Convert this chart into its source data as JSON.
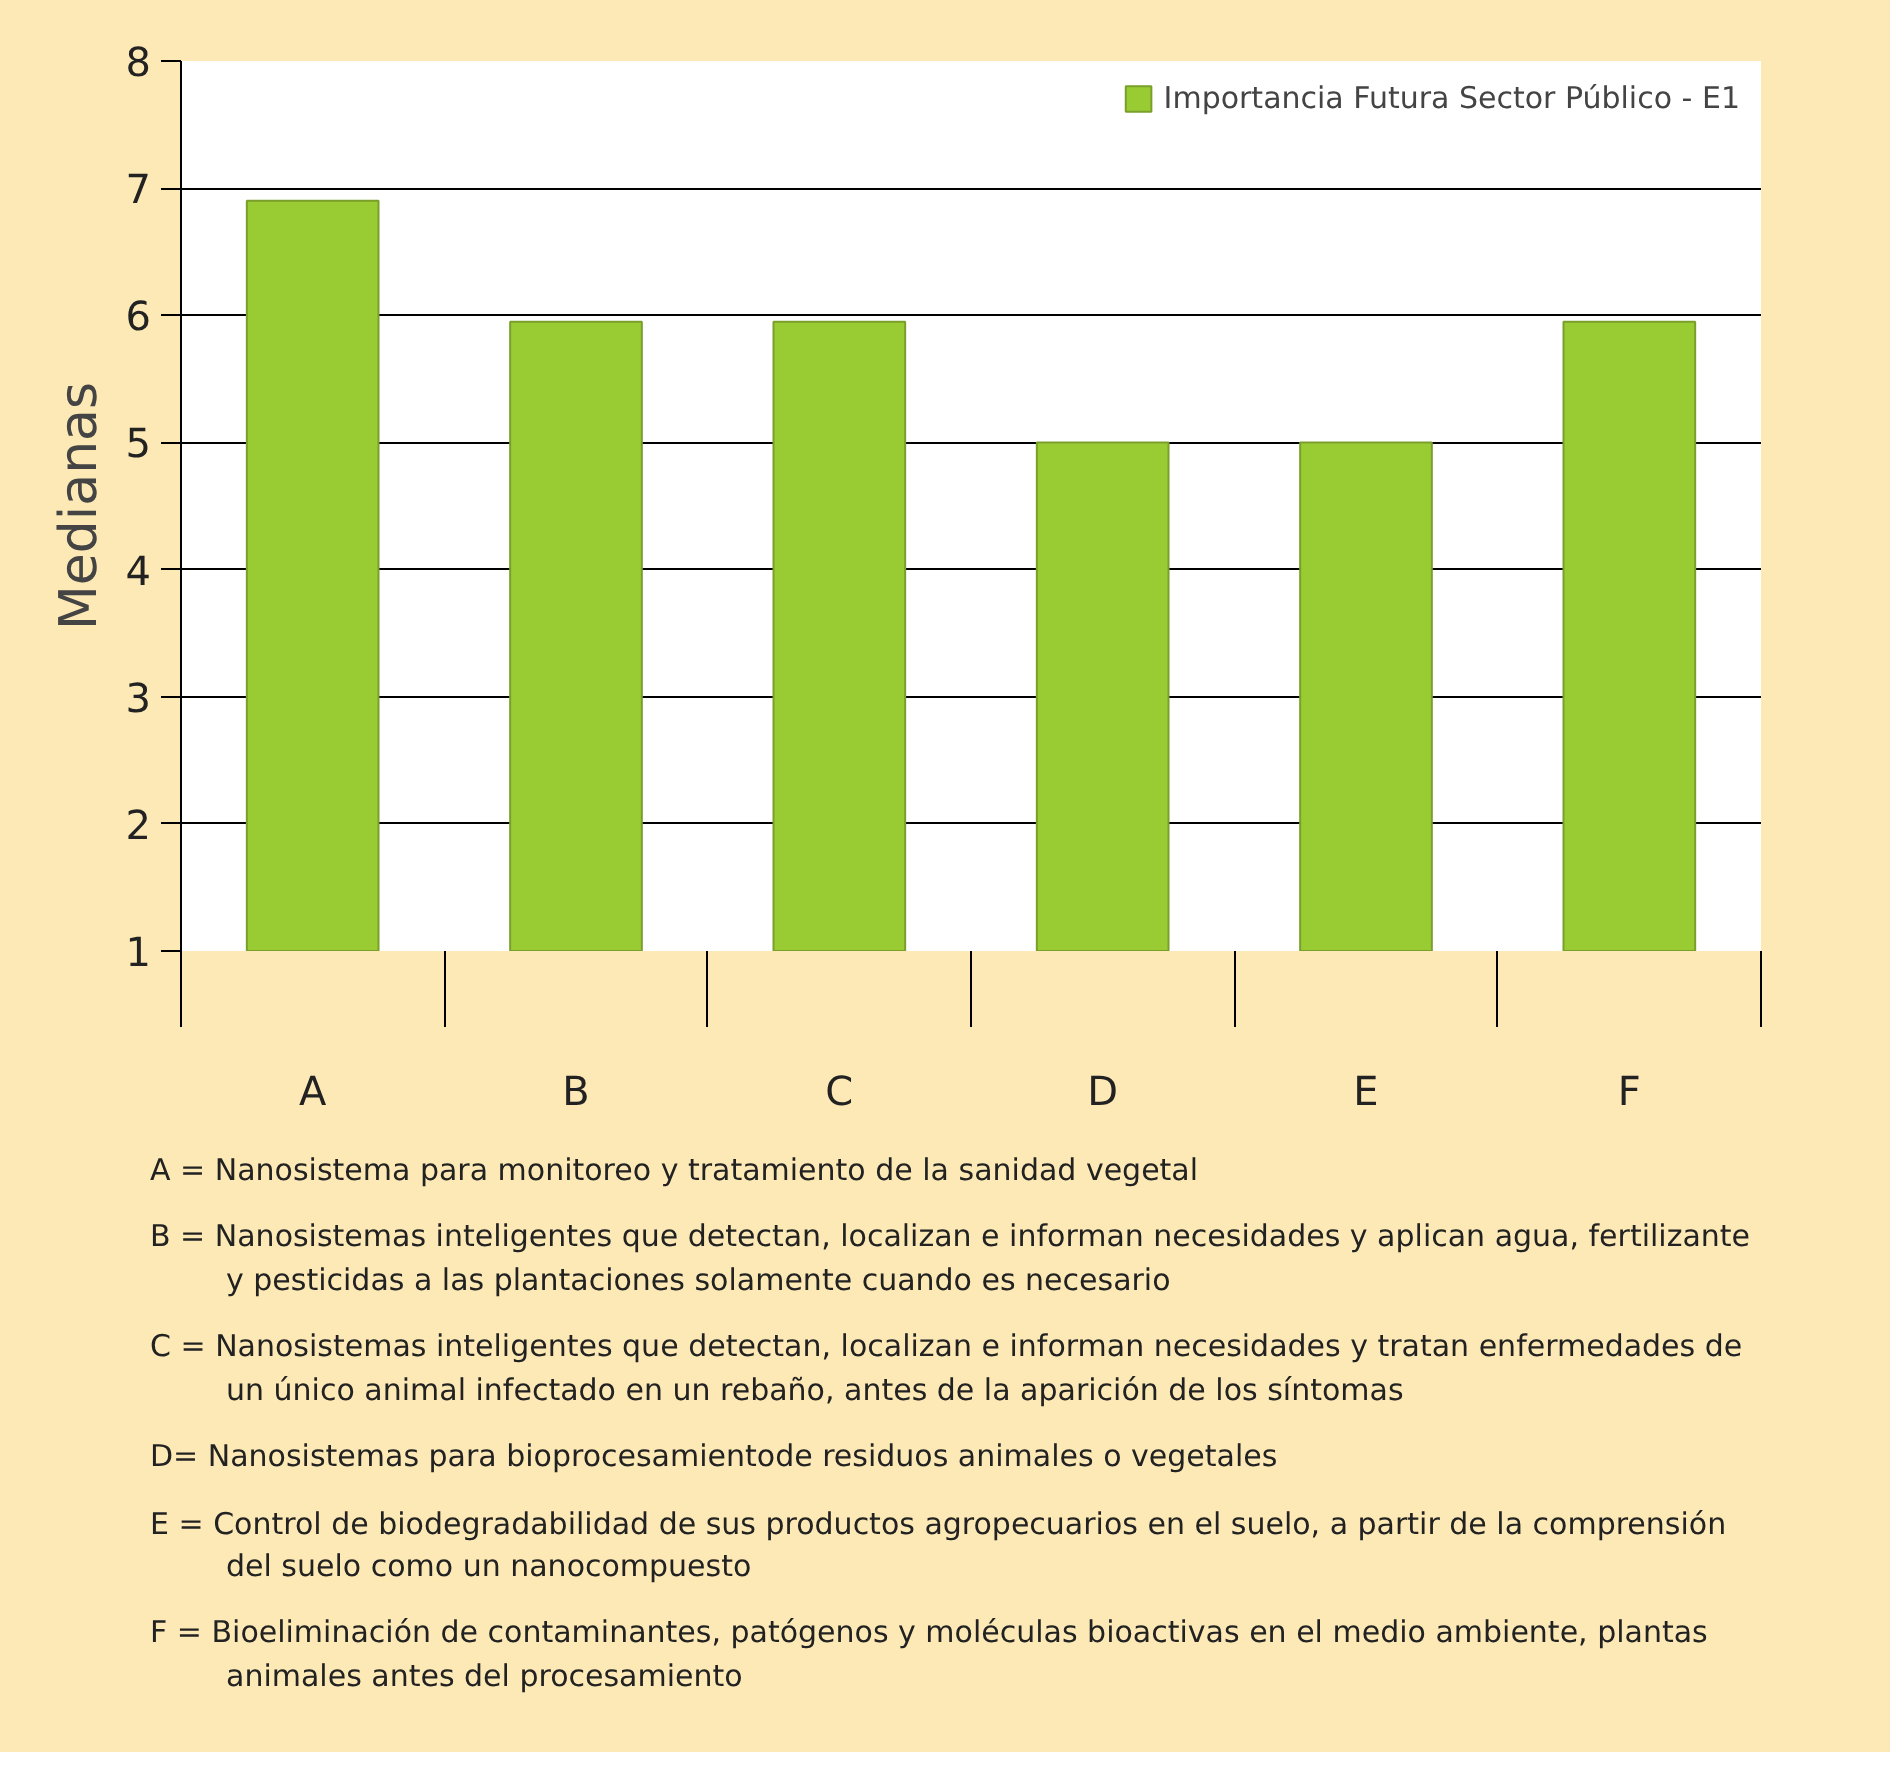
{
  "chart_data": {
    "type": "bar",
    "ylabel": "Medianas",
    "categories": [
      "A",
      "B",
      "C",
      "D",
      "E",
      "F"
    ],
    "series": [
      {
        "name": "Importancia Futura Sector Público - E1",
        "color": "#99cc33",
        "values": [
          6.9,
          5.95,
          5.95,
          5,
          5,
          5.95
        ]
      }
    ],
    "ylim": [
      1,
      8
    ],
    "yticks": [
      1,
      2,
      3,
      4,
      5,
      6,
      7,
      8
    ],
    "grid": "y",
    "legend": "top right",
    "annotations": [
      "A = Nanosistema para monitoreo y tratamiento de la sanidad vegetal",
      "B = Nanosistemas inteligentes que detectan, localizan e informan necesidades y aplican agua, fertilizante y pesticidas a las plantaciones solamente cuando es necesario",
      "C = Nanosistemas inteligentes que detectan, localizan e informan necesidades y tratan enfermedades de un único animal infectado en un rebaño, antes de la aparición de los síntomas",
      "D= Nanosistemas para bioprocesamientode residuos animales o vegetales",
      "E = Control de biodegradabilidad de sus productos agropecuarios en el suelo, a partir de la comprensión del suelo como un nanocompuesto",
      "F = Bioeliminación de contaminantes, patógenos y moléculas bioactivas en el medio ambiente, plantas animales antes del procesamiento"
    ]
  }
}
